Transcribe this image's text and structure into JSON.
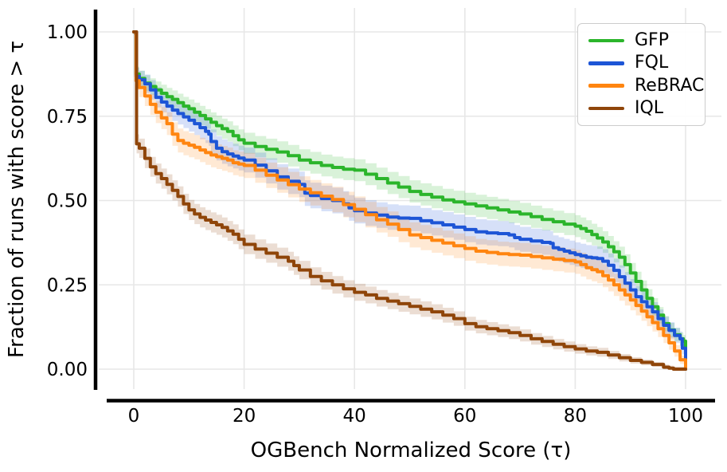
{
  "chart_data": {
    "type": "line",
    "subtype": "performance-profile-step-curves-with-confidence-bands",
    "title": "",
    "xlabel": "OGBench Normalized Score (τ)",
    "ylabel": "Fraction of runs with score > τ",
    "xlim": [
      0,
      100
    ],
    "ylim": [
      0.0,
      1.0
    ],
    "xticks": [
      0,
      20,
      40,
      60,
      80,
      100
    ],
    "xtick_labels": [
      "0",
      "20",
      "40",
      "60",
      "80",
      "100"
    ],
    "yticks": [
      0.0,
      0.25,
      0.5,
      0.75,
      1.0
    ],
    "ytick_labels": [
      "0.00",
      "0.25",
      "0.50",
      "0.75",
      "1.00"
    ],
    "grid": true,
    "grid_color": "#e7e7e7",
    "spine_color": "#000000",
    "legend_position": "upper right",
    "series": [
      {
        "name": "GFP",
        "color": "#2bb52b",
        "band_halfwidth": 0.033,
        "points": [
          [
            0,
            1.0
          ],
          [
            0.4,
            0.875
          ],
          [
            1,
            0.862
          ],
          [
            2,
            0.848
          ],
          [
            3,
            0.838
          ],
          [
            4,
            0.828
          ],
          [
            5,
            0.818
          ],
          [
            6,
            0.808
          ],
          [
            7,
            0.8
          ],
          [
            8,
            0.79
          ],
          [
            9,
            0.78
          ],
          [
            10,
            0.772
          ],
          [
            11,
            0.762
          ],
          [
            12,
            0.752
          ],
          [
            13,
            0.742
          ],
          [
            14,
            0.732
          ],
          [
            15,
            0.722
          ],
          [
            16,
            0.713
          ],
          [
            17,
            0.705
          ],
          [
            18,
            0.692
          ],
          [
            19,
            0.68
          ],
          [
            20,
            0.67
          ],
          [
            22,
            0.66
          ],
          [
            24,
            0.652
          ],
          [
            26,
            0.644
          ],
          [
            28,
            0.633
          ],
          [
            30,
            0.62
          ],
          [
            32,
            0.612
          ],
          [
            34,
            0.604
          ],
          [
            36,
            0.598
          ],
          [
            38,
            0.593
          ],
          [
            40,
            0.59
          ],
          [
            42,
            0.578
          ],
          [
            44,
            0.565
          ],
          [
            46,
            0.552
          ],
          [
            48,
            0.54
          ],
          [
            50,
            0.527
          ],
          [
            52,
            0.518
          ],
          [
            54,
            0.51
          ],
          [
            56,
            0.502
          ],
          [
            58,
            0.496
          ],
          [
            60,
            0.49
          ],
          [
            62,
            0.484
          ],
          [
            64,
            0.478
          ],
          [
            66,
            0.472
          ],
          [
            68,
            0.466
          ],
          [
            70,
            0.46
          ],
          [
            72,
            0.452
          ],
          [
            74,
            0.444
          ],
          [
            76,
            0.437
          ],
          [
            78,
            0.43
          ],
          [
            80,
            0.424
          ],
          [
            81,
            0.417
          ],
          [
            82,
            0.409
          ],
          [
            83,
            0.399
          ],
          [
            84,
            0.389
          ],
          [
            85,
            0.377
          ],
          [
            86,
            0.363
          ],
          [
            87,
            0.348
          ],
          [
            88,
            0.332
          ],
          [
            89,
            0.31
          ],
          [
            90,
            0.285
          ],
          [
            91,
            0.26
          ],
          [
            92,
            0.235
          ],
          [
            93,
            0.21
          ],
          [
            94,
            0.185
          ],
          [
            95,
            0.16
          ],
          [
            96,
            0.135
          ],
          [
            97,
            0.116
          ],
          [
            98,
            0.102
          ],
          [
            99,
            0.09
          ],
          [
            99.6,
            0.083
          ],
          [
            100,
            0.0
          ]
        ]
      },
      {
        "name": "FQL",
        "color": "#1d55d6",
        "band_halfwidth": 0.038,
        "points": [
          [
            0,
            1.0
          ],
          [
            0.4,
            0.868
          ],
          [
            1,
            0.858
          ],
          [
            2,
            0.846
          ],
          [
            3,
            0.828
          ],
          [
            4,
            0.806
          ],
          [
            5,
            0.792
          ],
          [
            6,
            0.78
          ],
          [
            7,
            0.768
          ],
          [
            8,
            0.758
          ],
          [
            9,
            0.748
          ],
          [
            10,
            0.738
          ],
          [
            11,
            0.728
          ],
          [
            12,
            0.716
          ],
          [
            13,
            0.705
          ],
          [
            13.6,
            0.697
          ],
          [
            14,
            0.675
          ],
          [
            15,
            0.655
          ],
          [
            16,
            0.645
          ],
          [
            17,
            0.638
          ],
          [
            18,
            0.632
          ],
          [
            19,
            0.626
          ],
          [
            20,
            0.62
          ],
          [
            22,
            0.605
          ],
          [
            24,
            0.588
          ],
          [
            26,
            0.57
          ],
          [
            28,
            0.557
          ],
          [
            30,
            0.548
          ],
          [
            31,
            0.522
          ],
          [
            32,
            0.515
          ],
          [
            34,
            0.506
          ],
          [
            36,
            0.5
          ],
          [
            38,
            0.49
          ],
          [
            39,
            0.478
          ],
          [
            40,
            0.47
          ],
          [
            42,
            0.463
          ],
          [
            44,
            0.457
          ],
          [
            46,
            0.451
          ],
          [
            48,
            0.448
          ],
          [
            50,
            0.447
          ],
          [
            52,
            0.44
          ],
          [
            54,
            0.434
          ],
          [
            56,
            0.428
          ],
          [
            58,
            0.421
          ],
          [
            60,
            0.414
          ],
          [
            62,
            0.407
          ],
          [
            64,
            0.404
          ],
          [
            66,
            0.402
          ],
          [
            68,
            0.398
          ],
          [
            69,
            0.39
          ],
          [
            70,
            0.385
          ],
          [
            72,
            0.38
          ],
          [
            74,
            0.376
          ],
          [
            75.5,
            0.373
          ],
          [
            76,
            0.36
          ],
          [
            77,
            0.355
          ],
          [
            78,
            0.35
          ],
          [
            79,
            0.345
          ],
          [
            80,
            0.34
          ],
          [
            81,
            0.336
          ],
          [
            82,
            0.332
          ],
          [
            83,
            0.33
          ],
          [
            84,
            0.328
          ],
          [
            85,
            0.32
          ],
          [
            86,
            0.308
          ],
          [
            87,
            0.293
          ],
          [
            88,
            0.274
          ],
          [
            89,
            0.255
          ],
          [
            90,
            0.235
          ],
          [
            91,
            0.215
          ],
          [
            92,
            0.2
          ],
          [
            93,
            0.185
          ],
          [
            94,
            0.17
          ],
          [
            95,
            0.15
          ],
          [
            96,
            0.13
          ],
          [
            97,
            0.115
          ],
          [
            98,
            0.1
          ],
          [
            99,
            0.09
          ],
          [
            99.4,
            0.062
          ],
          [
            100,
            0.0
          ]
        ]
      },
      {
        "name": "ReBRAC",
        "color": "#ff8510",
        "band_halfwidth": 0.038,
        "points": [
          [
            0,
            1.0
          ],
          [
            0.4,
            0.855
          ],
          [
            1,
            0.835
          ],
          [
            2,
            0.81
          ],
          [
            3,
            0.785
          ],
          [
            4,
            0.762
          ],
          [
            5,
            0.745
          ],
          [
            6,
            0.728
          ],
          [
            7,
            0.697
          ],
          [
            8,
            0.678
          ],
          [
            9,
            0.67
          ],
          [
            10,
            0.664
          ],
          [
            11,
            0.658
          ],
          [
            12,
            0.65
          ],
          [
            13,
            0.642
          ],
          [
            14,
            0.635
          ],
          [
            15,
            0.63
          ],
          [
            16,
            0.625
          ],
          [
            17,
            0.62
          ],
          [
            18,
            0.612
          ],
          [
            19,
            0.608
          ],
          [
            20,
            0.604
          ],
          [
            22,
            0.59
          ],
          [
            24,
            0.575
          ],
          [
            26,
            0.561
          ],
          [
            28,
            0.547
          ],
          [
            30,
            0.534
          ],
          [
            32,
            0.523
          ],
          [
            34,
            0.513
          ],
          [
            36,
            0.503
          ],
          [
            38,
            0.488
          ],
          [
            40,
            0.474
          ],
          [
            42,
            0.458
          ],
          [
            44,
            0.443
          ],
          [
            46,
            0.43
          ],
          [
            48,
            0.414
          ],
          [
            50,
            0.398
          ],
          [
            52,
            0.39
          ],
          [
            54,
            0.382
          ],
          [
            56,
            0.374
          ],
          [
            58,
            0.366
          ],
          [
            60,
            0.358
          ],
          [
            62,
            0.35
          ],
          [
            64,
            0.346
          ],
          [
            66,
            0.342
          ],
          [
            68,
            0.34
          ],
          [
            70,
            0.338
          ],
          [
            72,
            0.334
          ],
          [
            74,
            0.33
          ],
          [
            76,
            0.326
          ],
          [
            78,
            0.322
          ],
          [
            80,
            0.318
          ],
          [
            81,
            0.31
          ],
          [
            82,
            0.301
          ],
          [
            83,
            0.295
          ],
          [
            84,
            0.289
          ],
          [
            85,
            0.277
          ],
          [
            86,
            0.264
          ],
          [
            87,
            0.25
          ],
          [
            88,
            0.235
          ],
          [
            89,
            0.22
          ],
          [
            90,
            0.205
          ],
          [
            91,
            0.189
          ],
          [
            92,
            0.172
          ],
          [
            93,
            0.155
          ],
          [
            94,
            0.138
          ],
          [
            95,
            0.12
          ],
          [
            96,
            0.1
          ],
          [
            97,
            0.078
          ],
          [
            98,
            0.054
          ],
          [
            99,
            0.028
          ],
          [
            100,
            0.0
          ]
        ]
      },
      {
        "name": "IQL",
        "color": "#8f4509",
        "band_halfwidth": 0.03,
        "points": [
          [
            0,
            1.0
          ],
          [
            0.5,
            0.668
          ],
          [
            1,
            0.655
          ],
          [
            2,
            0.625
          ],
          [
            3,
            0.6
          ],
          [
            4,
            0.58
          ],
          [
            5,
            0.565
          ],
          [
            6,
            0.548
          ],
          [
            7,
            0.53
          ],
          [
            8,
            0.512
          ],
          [
            9,
            0.49
          ],
          [
            10,
            0.472
          ],
          [
            11,
            0.46
          ],
          [
            12,
            0.45
          ],
          [
            13,
            0.442
          ],
          [
            14,
            0.435
          ],
          [
            15,
            0.428
          ],
          [
            16,
            0.42
          ],
          [
            17,
            0.41
          ],
          [
            18,
            0.4
          ],
          [
            19,
            0.385
          ],
          [
            20,
            0.37
          ],
          [
            22,
            0.356
          ],
          [
            24,
            0.344
          ],
          [
            26,
            0.332
          ],
          [
            28,
            0.32
          ],
          [
            29,
            0.307
          ],
          [
            30,
            0.294
          ],
          [
            32,
            0.275
          ],
          [
            34,
            0.262
          ],
          [
            36,
            0.25
          ],
          [
            38,
            0.238
          ],
          [
            40,
            0.228
          ],
          [
            42,
            0.22
          ],
          [
            44,
            0.21
          ],
          [
            46,
            0.202
          ],
          [
            48,
            0.194
          ],
          [
            50,
            0.186
          ],
          [
            52,
            0.178
          ],
          [
            54,
            0.17
          ],
          [
            56,
            0.16
          ],
          [
            58,
            0.15
          ],
          [
            60,
            0.135
          ],
          [
            62,
            0.126
          ],
          [
            64,
            0.12
          ],
          [
            66,
            0.114
          ],
          [
            68,
            0.108
          ],
          [
            70,
            0.1
          ],
          [
            72,
            0.09
          ],
          [
            74,
            0.082
          ],
          [
            76,
            0.074
          ],
          [
            78,
            0.067
          ],
          [
            80,
            0.06
          ],
          [
            82,
            0.054
          ],
          [
            84,
            0.05
          ],
          [
            86,
            0.042
          ],
          [
            88,
            0.034
          ],
          [
            90,
            0.026
          ],
          [
            92,
            0.02
          ],
          [
            94,
            0.014
          ],
          [
            96,
            0.006
          ],
          [
            97,
            0.003
          ],
          [
            97.8,
            0.0
          ],
          [
            100,
            0.0
          ]
        ]
      }
    ]
  }
}
